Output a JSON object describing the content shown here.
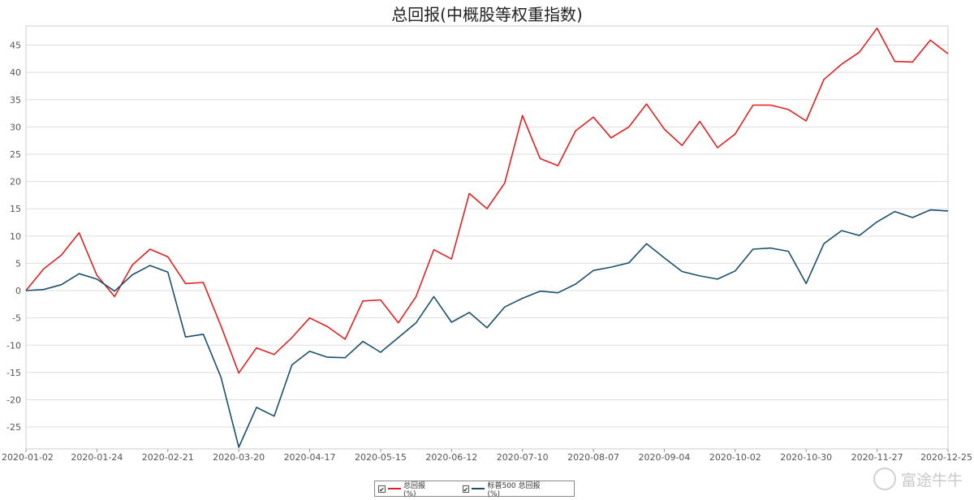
{
  "chart_data": {
    "type": "line",
    "title": "总回报(中概股等权重指数)",
    "xlabel": "",
    "ylabel": "",
    "ylim": [
      -29,
      48.5
    ],
    "yticks": [
      45,
      40,
      35,
      30,
      25,
      20,
      15,
      10,
      5,
      0,
      -5,
      -10,
      -15,
      -20,
      -25
    ],
    "xtick_labels": [
      "2020-01-02",
      "2020-01-24",
      "2020-02-21",
      "2020-03-20",
      "2020-04-17",
      "2020-05-15",
      "2020-06-12",
      "2020-07-10",
      "2020-08-07",
      "2020-09-04",
      "2020-10-02",
      "2020-10-30",
      "2020-11-27",
      "2020-12-25"
    ],
    "grid": true,
    "legend_position": "bottom",
    "series": [
      {
        "name": "总回报(%)",
        "color": "#e02020",
        "values": [
          0,
          4,
          6.5,
          10.6,
          2.8,
          -1.1,
          4.7,
          7.6,
          6.2,
          1.3,
          1.5,
          -6.5,
          -15.1,
          -10.5,
          -11.7,
          -8.6,
          -5,
          -6.6,
          -8.9,
          -1.9,
          -1.7,
          -5.9,
          -1.1,
          7.5,
          5.8,
          17.8,
          15,
          19.7,
          32.1,
          24.2,
          22.9,
          29.3,
          31.8,
          28,
          30,
          34.2,
          29.6,
          26.6,
          31,
          26.2,
          28.7,
          34,
          34,
          33.2,
          31.1,
          38.7,
          41.5,
          43.7,
          48.1,
          42,
          41.9,
          45.9,
          43.4
        ]
      },
      {
        "name": "标普500 总回报(%)",
        "color": "#1a4f6e",
        "values": [
          0,
          0.2,
          1.1,
          3.1,
          2.1,
          -0.1,
          2.9,
          4.6,
          3.4,
          -8.5,
          -8,
          -15.9,
          -28.7,
          -21.4,
          -23,
          -13.6,
          -11.1,
          -12.2,
          -12.3,
          -9.3,
          -11.3,
          -8.6,
          -5.9,
          -1.1,
          -5.8,
          -4,
          -6.8,
          -3,
          -1.4,
          -0.1,
          -0.4,
          1.2,
          3.7,
          4.3,
          5.1,
          8.6,
          6,
          3.5,
          2.7,
          2.1,
          3.6,
          7.6,
          7.8,
          7.2,
          1.3,
          8.6,
          11,
          10.1,
          12.6,
          14.5,
          13.4,
          14.8,
          14.6
        ]
      }
    ]
  },
  "legend": {
    "items": [
      {
        "label": "总回报(%)",
        "check": "✔"
      },
      {
        "label": "标普500 总回报(%)",
        "check": "✔"
      }
    ]
  },
  "watermark": {
    "text": "富途牛牛"
  }
}
